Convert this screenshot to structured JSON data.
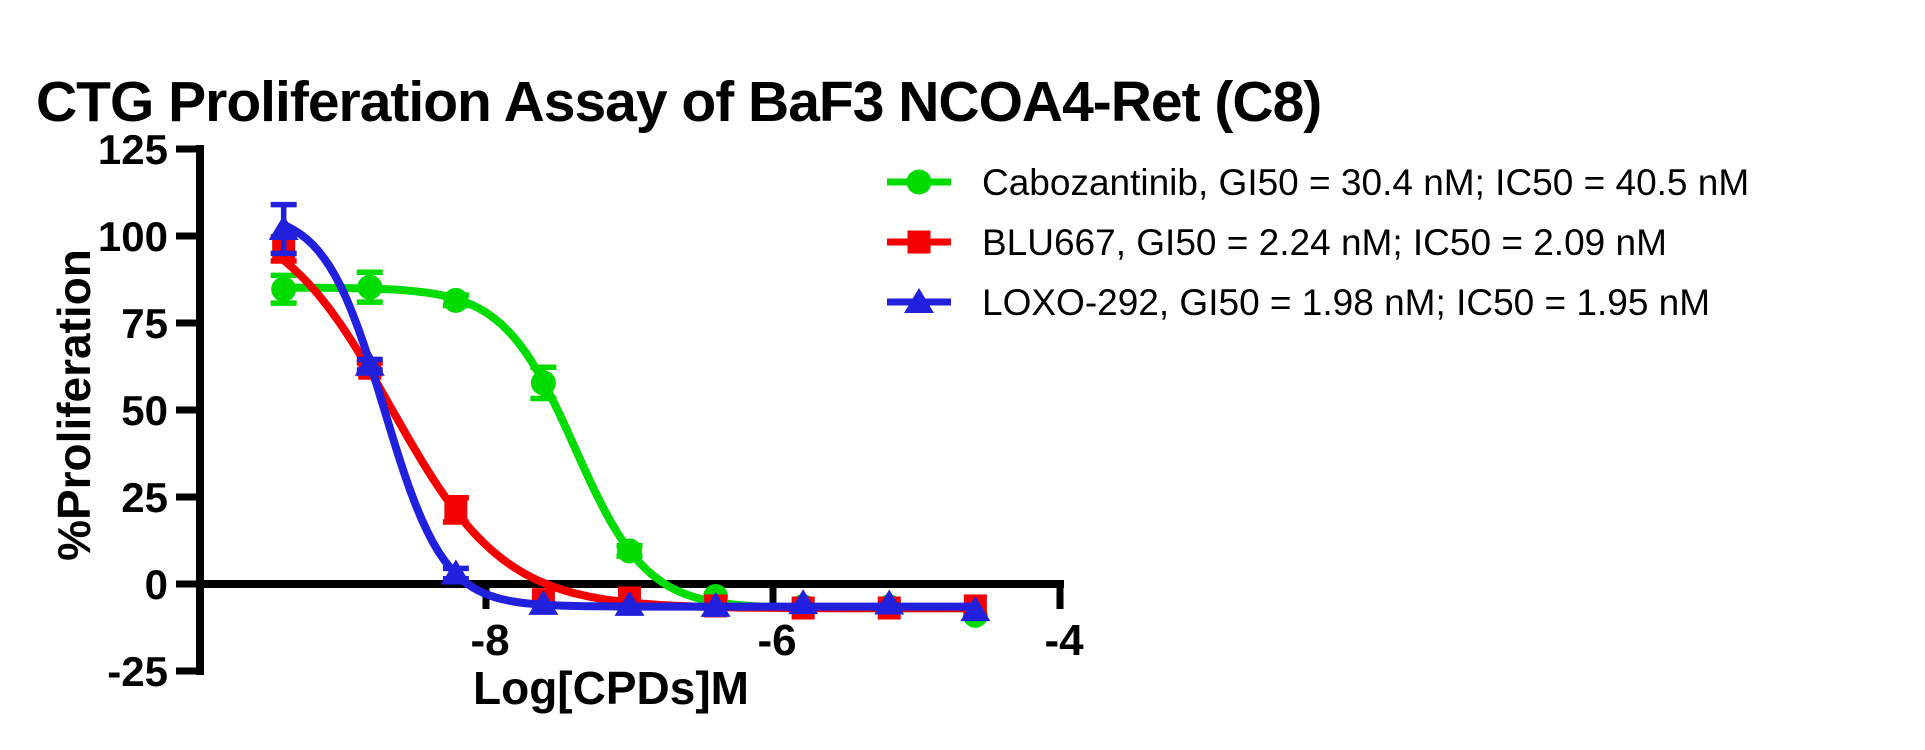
{
  "chart_data": {
    "type": "line",
    "title": "CTG Proliferation Assay of BaF3 NCOA4-Ret (C8)",
    "xlabel": "Log[CPDs]M",
    "ylabel": "%Proliferation",
    "xlim": [
      -10,
      -4
    ],
    "ylim": [
      -25,
      125
    ],
    "x_ticks": [
      -8,
      -6,
      -4
    ],
    "y_ticks": [
      125,
      100,
      75,
      50,
      25,
      0,
      -25
    ],
    "grid": false,
    "legend_position": "top-right",
    "axis_color": "#000000",
    "log_x": [
      -9.41,
      -8.81,
      -8.21,
      -7.6,
      -7.0,
      -6.4,
      -5.79,
      -5.19,
      -4.59
    ],
    "series": [
      {
        "name": "Cabozantinib",
        "legend_label": "Cabozantinib, GI50 = 30.4 nM; IC50 = 40.5 nM",
        "gi50": "30.4 nM",
        "ic50": "40.5 nM",
        "color": "#00dc00",
        "marker": "circle",
        "values": [
          84.7,
          85.3,
          81.5,
          57.8,
          9.5,
          -3.6,
          -6.5,
          -6.5,
          -9
        ],
        "errors": [
          4,
          4.3,
          1.5,
          4.5,
          1.5,
          0,
          0,
          0,
          0
        ],
        "fit": {
          "top": 85.2,
          "bottom": -7,
          "logec50": -7.38,
          "hill": 1.73
        }
      },
      {
        "name": "BLU667",
        "legend_label": "BLU667, GI50 = 2.24 nM; IC50 = 2.09 nM",
        "gi50": "2.24 nM",
        "ic50": "2.09 nM",
        "color": "#f40000",
        "marker": "square",
        "values": [
          96.3,
          62,
          21.3,
          -4.5,
          -4,
          -6.3,
          -6.9,
          -6.9,
          -6.3
        ],
        "errors": [
          3.5,
          1.5,
          3.5,
          0,
          0,
          0,
          0,
          0,
          0
        ],
        "fit": {
          "top": 108,
          "bottom": -7,
          "logec50": -8.66,
          "hill": 1.1
        }
      },
      {
        "name": "LOXO-292",
        "legend_label": "LOXO-292, GI50 = 1.98 nM; IC50 = 1.95 nM",
        "gi50": "1.98 nM",
        "ic50": "1.95 nM",
        "color": "#2020dd",
        "marker": "triangle",
        "values": [
          102,
          63,
          3,
          -5.7,
          -6,
          -6.3,
          -5.5,
          -5.6,
          -7.5
        ],
        "errors": [
          7,
          1.5,
          1.5,
          0,
          0,
          0,
          0,
          0,
          0
        ],
        "fit": {
          "top": 107,
          "bottom": -6.5,
          "logec50": -8.71,
          "hill": 2.09
        }
      }
    ]
  }
}
